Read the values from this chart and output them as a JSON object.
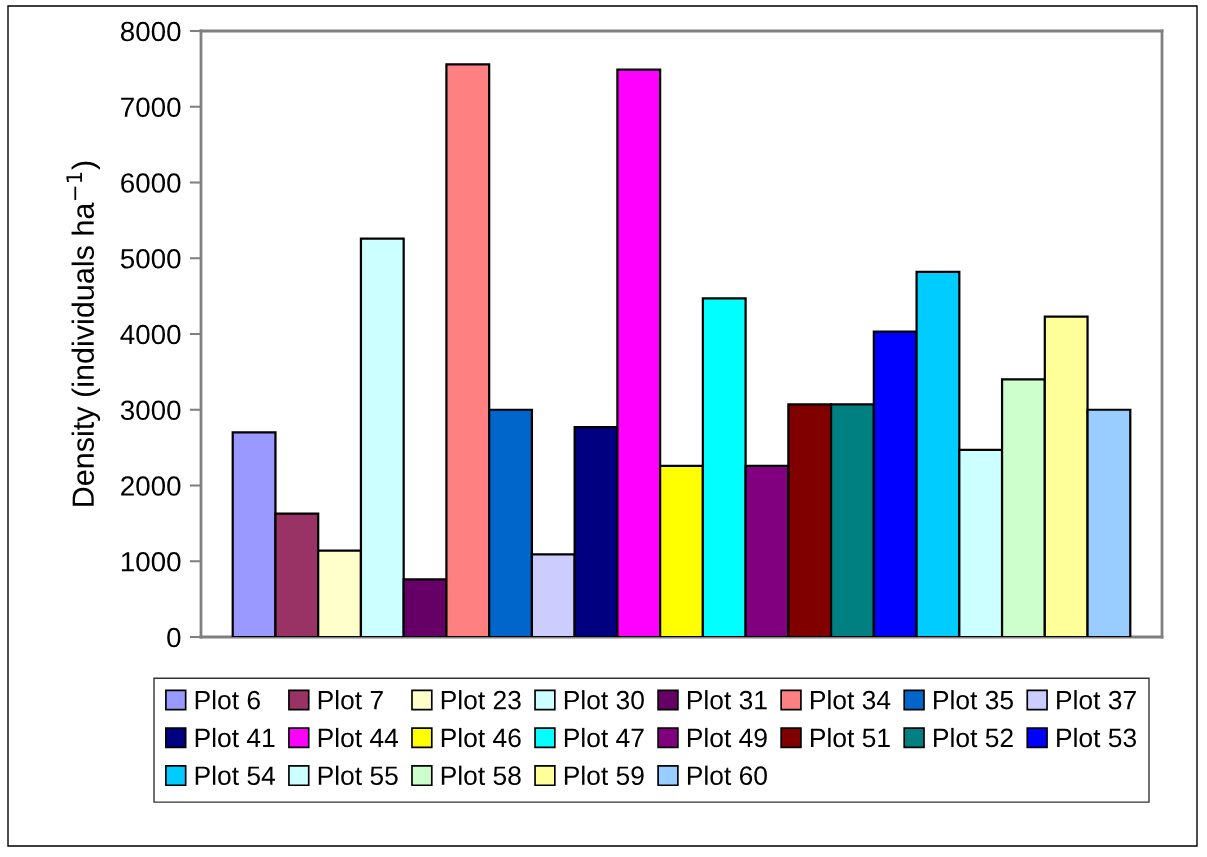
{
  "chart_data": {
    "type": "bar",
    "categories": [
      null
    ],
    "ylabel": "Density (individuals ha$^{−1}$)",
    "ylim": [
      0,
      8000
    ],
    "yticks": [
      0,
      1000,
      2000,
      3000,
      4000,
      5000,
      6000,
      7000,
      8000
    ],
    "tick_labels": "y",
    "legend": "bottom",
    "series": [
      {
        "name": "Plot 6",
        "color": "#9999ff",
        "values": [
          2700
        ]
      },
      {
        "name": "Plot 7",
        "color": "#993366",
        "values": [
          1630
        ]
      },
      {
        "name": "Plot 23",
        "color": "#ffffcc",
        "values": [
          1140
        ]
      },
      {
        "name": "Plot 30",
        "color": "#ccffff",
        "values": [
          5260
        ]
      },
      {
        "name": "Plot 31",
        "color": "#660066",
        "values": [
          760
        ]
      },
      {
        "name": "Plot 34",
        "color": "#ff8080",
        "values": [
          7560
        ]
      },
      {
        "name": "Plot 35",
        "color": "#0066cc",
        "values": [
          3000
        ]
      },
      {
        "name": "Plot 37",
        "color": "#ccccff",
        "values": [
          1090
        ]
      },
      {
        "name": "Plot 41",
        "color": "#000080",
        "values": [
          2770
        ]
      },
      {
        "name": "Plot 44",
        "color": "#ff00ff",
        "values": [
          7490
        ]
      },
      {
        "name": "Plot 46",
        "color": "#ffff00",
        "values": [
          2260
        ]
      },
      {
        "name": "Plot 47",
        "color": "#00ffff",
        "values": [
          4470
        ]
      },
      {
        "name": "Plot 49",
        "color": "#800080",
        "values": [
          2260
        ]
      },
      {
        "name": "Plot 51",
        "color": "#800000",
        "values": [
          3070
        ]
      },
      {
        "name": "Plot 52",
        "color": "#008080",
        "values": [
          3070
        ]
      },
      {
        "name": "Plot 53",
        "color": "#0000ff",
        "values": [
          4030
        ]
      },
      {
        "name": "Plot 54",
        "color": "#00ccff",
        "values": [
          4820
        ]
      },
      {
        "name": "Plot 55",
        "color": "#ccffff",
        "values": [
          2470
        ]
      },
      {
        "name": "Plot 58",
        "color": "#ccffcc",
        "values": [
          3400
        ]
      },
      {
        "name": "Plot 59",
        "color": "#ffff99",
        "values": [
          4230
        ]
      },
      {
        "name": "Plot 60",
        "color": "#99ccff",
        "values": [
          3000
        ]
      }
    ]
  }
}
